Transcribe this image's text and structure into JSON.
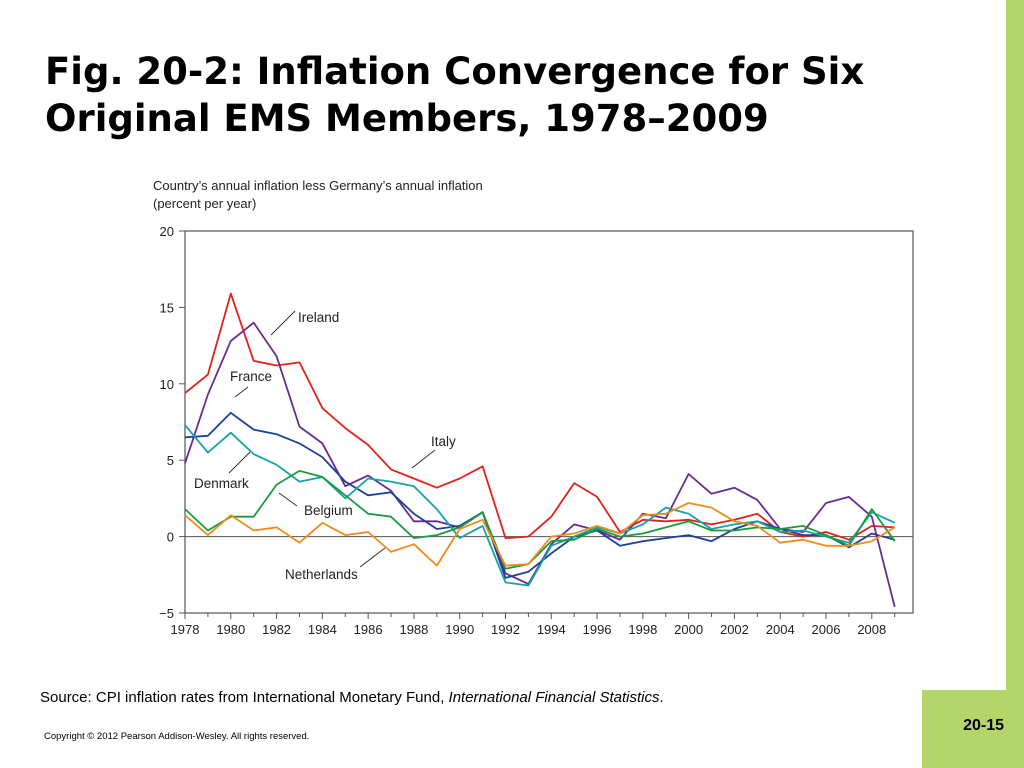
{
  "slide": {
    "title": "Fig. 20-2: Inflation Convergence for Six Original EMS Members, 1978–2009",
    "source_prefix": "Source: CPI inflation rates from International Monetary Fund, ",
    "source_italic": "International Financial Statistics",
    "source_suffix": ".",
    "copyright": "Copyright © 2012 Pearson Addison-Wesley. All rights reserved.",
    "page_number": "20-15",
    "colors": {
      "border": "#b5d56a",
      "background": "#ffffff"
    }
  },
  "chart_data": {
    "type": "line",
    "title": "Country’s annual inflation less Germany’s annual inflation",
    "subtitle": "(percent per year)",
    "xlabel": "",
    "ylabel": "",
    "xlim": [
      1978,
      2009.8
    ],
    "ylim": [
      -5,
      20
    ],
    "yticks": [
      -5,
      0,
      5,
      10,
      15,
      20
    ],
    "ytick_labels": [
      "−5",
      "0",
      "5",
      "10",
      "15",
      "20"
    ],
    "xticks": [
      1978,
      1980,
      1982,
      1984,
      1986,
      1988,
      1990,
      1992,
      1994,
      1996,
      1998,
      2000,
      2002,
      2004,
      2006,
      2008
    ],
    "x": [
      1978,
      1979,
      1980,
      1981,
      1982,
      1983,
      1984,
      1985,
      1986,
      1987,
      1988,
      1989,
      1990,
      1991,
      1992,
      1993,
      1994,
      1995,
      1996,
      1997,
      1998,
      1999,
      2000,
      2001,
      2002,
      2003,
      2004,
      2005,
      2006,
      2007,
      2008,
      2009
    ],
    "grid": false,
    "zero_line": true,
    "series": [
      {
        "name": "Italy",
        "color": "#e2231a",
        "values": [
          9.4,
          10.6,
          15.9,
          11.5,
          11.2,
          11.4,
          8.4,
          7.1,
          6.0,
          4.4,
          3.8,
          3.2,
          3.8,
          4.6,
          -0.1,
          0.0,
          1.3,
          3.5,
          2.6,
          0.3,
          1.1,
          1.0,
          1.1,
          0.8,
          1.1,
          1.5,
          0.3,
          0.0,
          0.3,
          -0.2,
          0.7,
          0.6
        ]
      },
      {
        "name": "Ireland",
        "color": "#6a2c91",
        "values": [
          4.8,
          9.3,
          12.8,
          14.0,
          11.8,
          7.2,
          6.1,
          3.3,
          4.0,
          3.0,
          1.0,
          1.0,
          0.6,
          1.6,
          -2.4,
          -3.1,
          -0.5,
          0.8,
          0.4,
          -0.2,
          1.5,
          1.2,
          4.1,
          2.8,
          3.2,
          2.4,
          0.5,
          0.3,
          2.2,
          2.6,
          1.3,
          -4.6
        ]
      },
      {
        "name": "France",
        "color": "#1f3f99",
        "values": [
          6.5,
          6.6,
          8.1,
          7.0,
          6.7,
          6.1,
          5.2,
          3.6,
          2.7,
          2.9,
          1.5,
          0.5,
          0.7,
          1.6,
          -2.7,
          -2.3,
          -1.1,
          0.0,
          0.4,
          -0.6,
          -0.3,
          -0.1,
          0.1,
          -0.3,
          0.5,
          1.0,
          0.5,
          0.1,
          0.1,
          -0.7,
          0.2,
          -0.2
        ]
      },
      {
        "name": "Denmark",
        "color": "#17a2a8",
        "values": [
          7.3,
          5.5,
          6.8,
          5.4,
          4.7,
          3.6,
          3.9,
          2.5,
          3.8,
          3.6,
          3.3,
          1.8,
          -0.1,
          0.7,
          -3.0,
          -3.2,
          -0.6,
          0.0,
          0.6,
          0.2,
          0.8,
          1.9,
          1.5,
          0.5,
          0.8,
          1.0,
          0.3,
          0.4,
          0.0,
          -0.4,
          1.6,
          0.9
        ]
      },
      {
        "name": "Belgium",
        "color": "#1a9b3c",
        "values": [
          1.8,
          0.4,
          1.3,
          1.3,
          3.4,
          4.3,
          3.9,
          2.7,
          1.5,
          1.3,
          -0.1,
          0.1,
          0.6,
          1.6,
          -2.1,
          -1.8,
          -0.3,
          -0.2,
          0.5,
          0.0,
          0.2,
          0.6,
          1.0,
          0.4,
          0.4,
          0.6,
          0.5,
          0.7,
          0.1,
          -0.6,
          1.8,
          -0.3
        ]
      },
      {
        "name": "Netherlands",
        "color": "#f08c1e",
        "values": [
          1.4,
          0.1,
          1.4,
          0.4,
          0.6,
          -0.4,
          0.9,
          0.1,
          0.3,
          -1.0,
          -0.5,
          -1.9,
          0.5,
          1.1,
          -1.9,
          -1.8,
          0.0,
          0.2,
          0.7,
          0.2,
          1.4,
          1.5,
          2.2,
          1.9,
          1.0,
          0.7,
          -0.4,
          -0.2,
          -0.6,
          -0.6,
          -0.3,
          0.6
        ]
      }
    ],
    "annotations": [
      {
        "series": "Ireland",
        "text": "Ireland"
      },
      {
        "series": "France",
        "text": "France"
      },
      {
        "series": "Italy",
        "text": "Italy"
      },
      {
        "series": "Denmark",
        "text": "Denmark"
      },
      {
        "series": "Belgium",
        "text": "Belgium"
      },
      {
        "series": "Netherlands",
        "text": "Netherlands"
      }
    ]
  }
}
